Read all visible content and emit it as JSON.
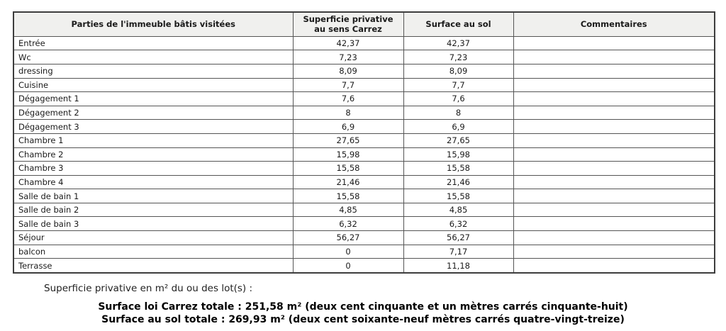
{
  "table": {
    "headers": [
      "Parties de l'immeuble bâtis visitées",
      "Superficie privative au sens Carrez",
      "Surface au sol",
      "Commentaires"
    ],
    "rows": [
      {
        "name": "Entrée",
        "carrez": "42,37",
        "sol": "42,37",
        "comment": ""
      },
      {
        "name": "Wc",
        "carrez": "7,23",
        "sol": "7,23",
        "comment": ""
      },
      {
        "name": "dressing",
        "carrez": "8,09",
        "sol": "8,09",
        "comment": ""
      },
      {
        "name": "Cuisine",
        "carrez": "7,7",
        "sol": "7,7",
        "comment": ""
      },
      {
        "name": "Dégagement 1",
        "carrez": "7,6",
        "sol": "7,6",
        "comment": ""
      },
      {
        "name": "Dégagement 2",
        "carrez": "8",
        "sol": "8",
        "comment": ""
      },
      {
        "name": "Dégagement 3",
        "carrez": "6,9",
        "sol": "6,9",
        "comment": ""
      },
      {
        "name": "Chambre 1",
        "carrez": "27,65",
        "sol": "27,65",
        "comment": ""
      },
      {
        "name": "Chambre 2",
        "carrez": "15,98",
        "sol": "15,98",
        "comment": ""
      },
      {
        "name": "Chambre 3",
        "carrez": "15,58",
        "sol": "15,58",
        "comment": ""
      },
      {
        "name": "Chambre 4",
        "carrez": "21,46",
        "sol": "21,46",
        "comment": ""
      },
      {
        "name": "Salle de bain 1",
        "carrez": "15,58",
        "sol": "15,58",
        "comment": ""
      },
      {
        "name": "Salle de bain 2",
        "carrez": "4,85",
        "sol": "4,85",
        "comment": ""
      },
      {
        "name": "Salle de bain 3",
        "carrez": "6,32",
        "sol": "6,32",
        "comment": ""
      },
      {
        "name": "Séjour",
        "carrez": "56,27",
        "sol": "56,27",
        "comment": ""
      },
      {
        "name": "balcon",
        "carrez": "0",
        "sol": "7,17",
        "comment": ""
      },
      {
        "name": "Terrasse",
        "carrez": "0",
        "sol": "11,18",
        "comment": ""
      }
    ]
  },
  "footer": {
    "label": "Superficie privative en m² du ou des lot(s) :",
    "carrez_total": "Surface loi Carrez totale : 251,58 m² (deux cent cinquante et un mètres carrés cinquante-huit)",
    "sol_total": "Surface au sol totale : 269,93 m² (deux cent soixante-neuf mètres carrés quatre-vingt-treize)"
  },
  "colors": {
    "header_bg": "#f0f0ee",
    "border": "#555555",
    "text": "#1a1a1a"
  }
}
